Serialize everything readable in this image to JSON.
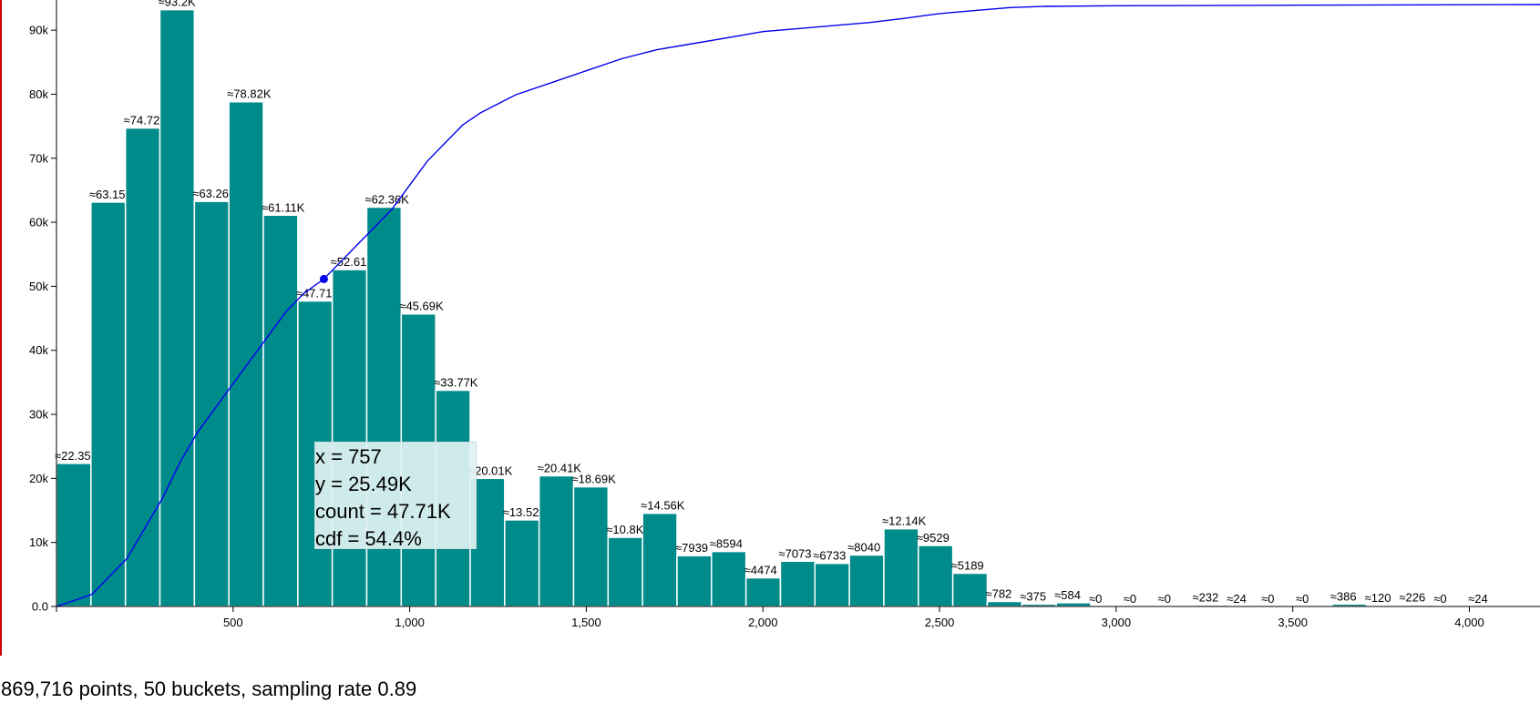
{
  "chart_data": {
    "type": "bar",
    "bucket_width": 97.6,
    "x_start": 0,
    "xlim": [
      0,
      4200
    ],
    "ylim": [
      0,
      94000
    ],
    "x_ticks": [
      500,
      1000,
      1500,
      2000,
      2500,
      3000,
      3500,
      4000
    ],
    "x_tick_labels": [
      "500",
      "1,000",
      "1,500",
      "2,000",
      "2,500",
      "3,000",
      "3,500",
      "4,000"
    ],
    "y_ticks": [
      0,
      10000,
      20000,
      30000,
      40000,
      50000,
      60000,
      70000,
      80000,
      90000
    ],
    "y_tick_labels": [
      "0.0",
      "10k",
      "20k",
      "30k",
      "40k",
      "50k",
      "60k",
      "70k",
      "80k",
      "90k"
    ],
    "values": [
      22350,
      63150,
      74720,
      93200,
      63260,
      78820,
      61110,
      47710,
      52610,
      62360,
      45690,
      33770,
      20010,
      13520,
      20410,
      18690,
      10800,
      14560,
      7939,
      8594,
      4474,
      7073,
      6733,
      8040,
      12140,
      9529,
      5189,
      782,
      375,
      584,
      0,
      0,
      0,
      232,
      24,
      0,
      0,
      386,
      120,
      226,
      0,
      24
    ],
    "labels": [
      "≈22.35",
      "≈63.15",
      "≈74.72",
      "≈93.2K",
      "≈63.26",
      "≈78.82K",
      "≈61.11K",
      "≈47.71",
      "≈52.61",
      "≈62.36K",
      "≈45.69K",
      "≈33.77K",
      "≈20.01K",
      "≈13.52",
      "≈20.41K",
      "≈18.69K",
      "≈10.8K",
      "≈14.56K",
      "≈7939",
      "≈8594",
      "≈4474",
      "≈7073",
      "≈6733",
      "≈8040",
      "≈12.14K",
      "≈9529",
      "≈5189",
      "≈782",
      "≈375",
      "≈584",
      "≈0",
      "≈0",
      "≈0",
      "≈232",
      "≈24",
      "≈0",
      "≈0",
      "≈386",
      "≈120",
      "≈226",
      "≈0",
      "≈24"
    ],
    "cdf": {
      "x": [
        0,
        100,
        150,
        200,
        250,
        300,
        350,
        400,
        450,
        500,
        550,
        600,
        650,
        700,
        757,
        800,
        850,
        900,
        950,
        1000,
        1050,
        1100,
        1150,
        1200,
        1300,
        1400,
        1500,
        1600,
        1700,
        1800,
        1900,
        2000,
        2100,
        2200,
        2300,
        2400,
        2500,
        2600,
        2700,
        2800,
        3000,
        3500,
        4200
      ],
      "y": [
        0,
        0.02,
        0.05,
        0.08,
        0.13,
        0.18,
        0.24,
        0.29,
        0.33,
        0.37,
        0.41,
        0.45,
        0.49,
        0.52,
        0.544,
        0.57,
        0.6,
        0.63,
        0.66,
        0.7,
        0.74,
        0.77,
        0.8,
        0.82,
        0.85,
        0.87,
        0.89,
        0.91,
        0.925,
        0.935,
        0.945,
        0.955,
        0.96,
        0.965,
        0.97,
        0.977,
        0.985,
        0.99,
        0.995,
        0.997,
        0.998,
        0.999,
        1.0
      ],
      "marker": {
        "x": 757,
        "y": 0.544
      }
    },
    "colors": {
      "bar": "#008b8b",
      "bar_edge": "#ffffff",
      "cdf": "#0000ee"
    }
  },
  "tooltip": {
    "x": "x = 757",
    "y": "y = 25.49K",
    "count": "count = 47.71K",
    "cdf": "cdf = 54.4%"
  },
  "summary": "869,716 points, 50 buckets, sampling rate 0.89"
}
